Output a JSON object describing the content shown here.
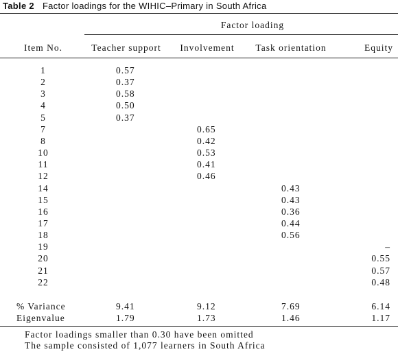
{
  "header": {
    "label": "Table 2",
    "title": "Factor loadings for the WIHIC–Primary in South Africa"
  },
  "table": {
    "spanner": "Factor loading",
    "columns": [
      "Item No.",
      "Teacher support",
      "Involvement",
      "Task orientation",
      "Equity"
    ],
    "groups": [
      {
        "items": [
          "1",
          "2",
          "3",
          "4",
          "5"
        ],
        "loadings": [
          "0.57",
          "0.37",
          "0.58",
          "0.50",
          "0.37"
        ]
      },
      {
        "items": [
          "7",
          "8",
          "10",
          "11",
          "12"
        ],
        "loadings": [
          "0.65",
          "0.42",
          "0.53",
          "0.41",
          "0.46"
        ]
      },
      {
        "items": [
          "14",
          "15",
          "16",
          "17",
          "18"
        ],
        "loadings": [
          "0.43",
          "0.43",
          "0.36",
          "0.44",
          "0.56"
        ]
      },
      {
        "items": [
          "19",
          "20",
          "21",
          "22"
        ],
        "loadings": [
          "–",
          "0.55",
          "0.57",
          "0.48"
        ]
      }
    ],
    "summary": [
      {
        "label": "% Variance",
        "values": [
          "9.41",
          "9.12",
          "7.69",
          "6.14"
        ]
      },
      {
        "label": "Eigenvalue",
        "values": [
          "1.79",
          "1.73",
          "1.46",
          "1.17"
        ]
      }
    ]
  },
  "notes": [
    "Factor loadings smaller than 0.30 have been omitted",
    "The sample consisted of 1,077 learners in South Africa"
  ]
}
